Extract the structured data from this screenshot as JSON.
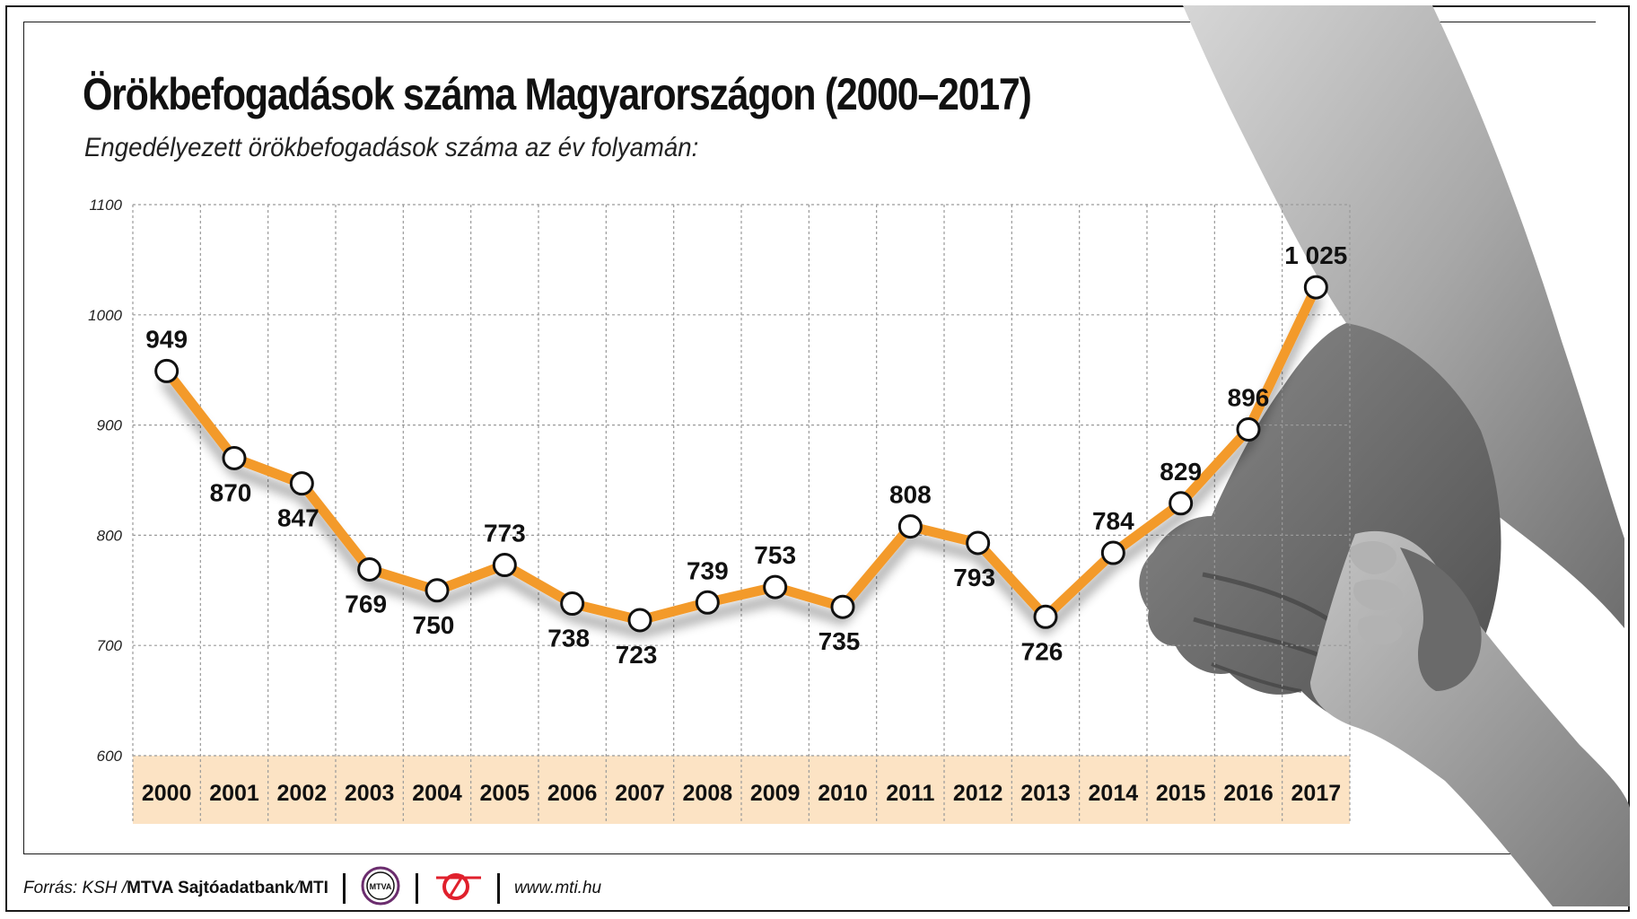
{
  "title": "Örökbefogadások száma Magyarországon (2000–2017)",
  "subtitle": "Engedélyezett örökbefogadások száma az év folyamán:",
  "chart_data": {
    "type": "line",
    "x": [
      "2000",
      "2001",
      "2002",
      "2003",
      "2004",
      "2005",
      "2006",
      "2007",
      "2008",
      "2009",
      "2010",
      "2011",
      "2012",
      "2013",
      "2014",
      "2015",
      "2016",
      "2017"
    ],
    "series": [
      {
        "values": [
          949,
          870,
          847,
          769,
          750,
          773,
          738,
          723,
          739,
          753,
          735,
          808,
          793,
          726,
          784,
          829,
          896,
          1025
        ]
      }
    ],
    "data_labels": [
      "949",
      "870",
      "847",
      "769",
      "750",
      "773",
      "738",
      "723",
      "739",
      "753",
      "735",
      "808",
      "793",
      "726",
      "784",
      "829",
      "896",
      "1 025"
    ],
    "yticks": [
      600,
      700,
      800,
      900,
      1000,
      1100
    ],
    "ytick_labels": [
      "600",
      "700",
      "800",
      "900",
      "1000",
      "1100"
    ],
    "ylim": [
      600,
      1100
    ],
    "grid": "dashed",
    "line_color": "#f39a2b",
    "marker_fill": "#ffffff",
    "xaxis_band_color": "#fce3c4"
  },
  "footer": {
    "source_prefix": "Forrás: KSH / ",
    "source_bold": "MTVA Sajtóadatbank",
    "source_sep": " / ",
    "source_mti": "MTI",
    "mtva_logo_text": "MTVA",
    "url": "www.mti.hu"
  }
}
